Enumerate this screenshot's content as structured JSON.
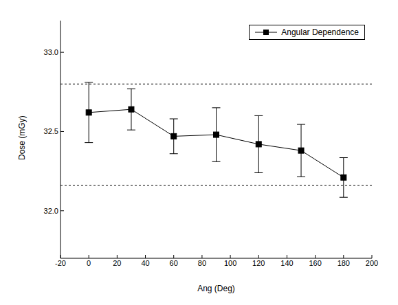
{
  "chart_data": {
    "type": "line",
    "x_label": "Ang (Deg)",
    "y_label": "Dose (mGy)",
    "x": [
      0,
      30,
      60,
      90,
      120,
      150,
      180
    ],
    "series": [
      {
        "name": "Angular Dependence",
        "color": "#000000",
        "marker": "square",
        "line_style": "solid",
        "values": [
          32.62,
          32.64,
          32.47,
          32.48,
          32.42,
          32.38,
          32.21
        ],
        "errors": [
          0.19,
          0.13,
          0.11,
          0.17,
          0.18,
          0.165,
          0.125
        ]
      }
    ],
    "xlim": [
      -20,
      200
    ],
    "xticks": [
      -20,
      0,
      20,
      40,
      60,
      80,
      100,
      120,
      140,
      160,
      180,
      200
    ],
    "ylim": [
      31.7,
      33.2
    ],
    "yticks": [
      {
        "value": 32.0,
        "label": "32.0"
      },
      {
        "value": 32.5,
        "label": "32.5"
      },
      {
        "value": 33.0,
        "label": "33.0"
      }
    ],
    "reference_lines": [
      32.8,
      32.16
    ],
    "legend": "upper right",
    "grid": false
  }
}
